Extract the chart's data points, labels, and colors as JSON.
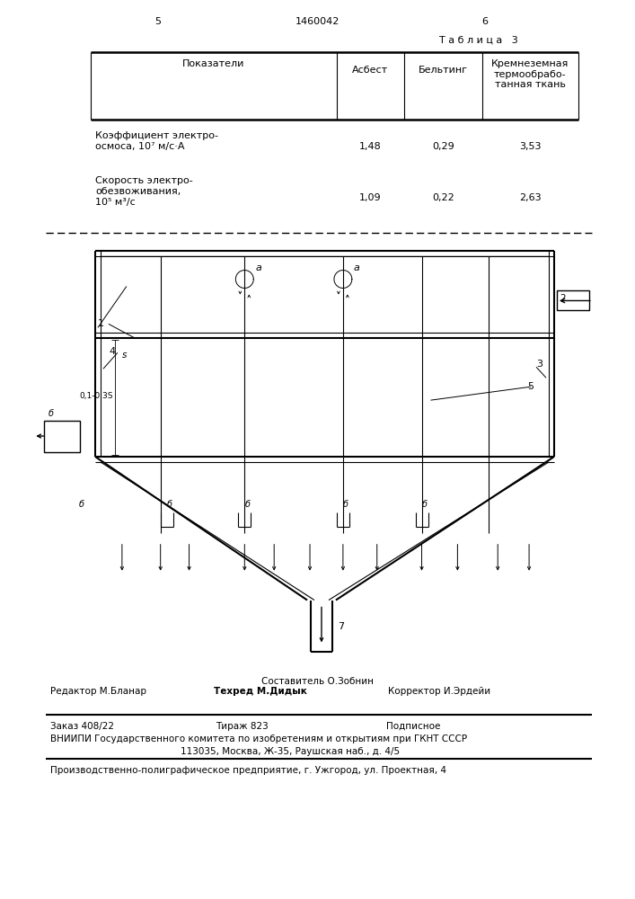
{
  "page_width": 7.07,
  "page_height": 10.0,
  "bg_color": "#ffffff",
  "header_page_left": "5",
  "header_center": "1460042",
  "header_page_right": "6",
  "table_title": "Т а б л и ц а   3",
  "col1_header": "Показатели",
  "col2_header": "Асбест",
  "col3_header": "Бельтинг",
  "col4_header": "Кремнеземная\nтермообрабо-\nтанная ткань",
  "row1_label_1": "Коэффициент электро-",
  "row1_label_2": "осмоса, 10⁷ м/с·А",
  "row1_v1": "1,48",
  "row1_v2": "0,29",
  "row1_v3": "3,53",
  "row2_label_1": "Скорость электро-",
  "row2_label_2": "обезвоживания,",
  "row2_label_3": "10⁵ м³/с",
  "row2_v1": "1,09",
  "row2_v2": "0,22",
  "row2_v3": "2,63",
  "footer_author": "Составитель О.Зобнин",
  "footer_editor": "Редактор М.Бланар",
  "footer_tech": "Техред М.Дидык",
  "footer_corrector": "Корректор И.Эрдейи",
  "footer_order": "Заказ 408/22",
  "footer_circulation": "Тираж 823",
  "footer_subscription": "Подписное",
  "footer_vniip1": "ВНИИПИ Государственного комитета по изобретениям и открытиям при ГКНТ СССР",
  "footer_vniip2": "113035, Москва, Ж-35, Раушская наб., д. 4/5",
  "footer_prod": "Производственно-полиграфическое предприятие, г. Ужгород, ул. Проектная, 4"
}
